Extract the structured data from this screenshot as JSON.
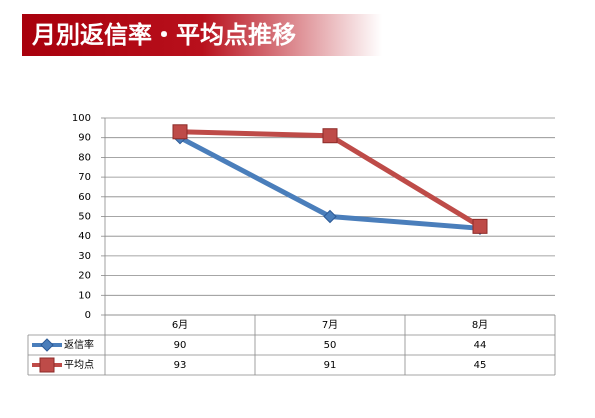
{
  "chart_data": {
    "type": "line",
    "title": "月別返信率・平均点推移",
    "categories": [
      "6月",
      "7月",
      "8月"
    ],
    "series": [
      {
        "name": "返信率",
        "color": "#4a7ebb",
        "values": [
          90,
          50,
          44
        ]
      },
      {
        "name": "平均点",
        "color": "#be4b48",
        "values": [
          93,
          91,
          45
        ]
      }
    ],
    "ylim": [
      0,
      100
    ],
    "yticks": [
      0,
      10,
      20,
      30,
      40,
      50,
      60,
      70,
      80,
      90,
      100
    ],
    "grid": true
  }
}
